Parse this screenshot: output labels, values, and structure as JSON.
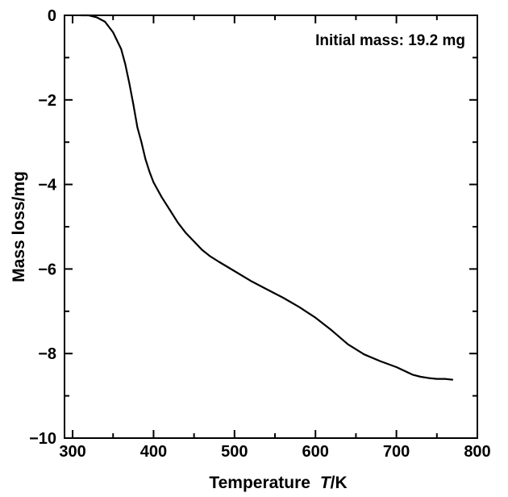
{
  "chart_data": {
    "type": "line",
    "title": "",
    "xlabel": "Temperature",
    "xlabel_symbol": "T",
    "xlabel_unit": "/K",
    "ylabel": "Mass loss/mg",
    "annotation": "Initial mass: 19.2 mg",
    "xlim": [
      290,
      800
    ],
    "ylim": [
      -10,
      0
    ],
    "x_tick_labels": [
      "300",
      "400",
      "500",
      "600",
      "700",
      "800"
    ],
    "y_tick_labels": [
      "0",
      "−2",
      "−4",
      "−6",
      "−8",
      "−10"
    ],
    "series": [
      {
        "name": "Mass loss",
        "color": "#000000",
        "x": [
          310,
          320,
          330,
          340,
          350,
          360,
          365,
          370,
          375,
          380,
          385,
          390,
          395,
          400,
          410,
          420,
          430,
          440,
          450,
          460,
          470,
          480,
          500,
          520,
          540,
          560,
          580,
          600,
          620,
          640,
          660,
          680,
          700,
          720,
          730,
          740,
          750,
          760,
          770
        ],
        "y": [
          0,
          0,
          -0.05,
          -0.15,
          -0.4,
          -0.8,
          -1.15,
          -1.6,
          -2.1,
          -2.65,
          -3.0,
          -3.4,
          -3.7,
          -3.95,
          -4.3,
          -4.6,
          -4.9,
          -5.15,
          -5.35,
          -5.55,
          -5.7,
          -5.82,
          -6.05,
          -6.28,
          -6.48,
          -6.68,
          -6.9,
          -7.15,
          -7.45,
          -7.78,
          -8.02,
          -8.18,
          -8.32,
          -8.5,
          -8.55,
          -8.58,
          -8.6,
          -8.6,
          -8.62
        ]
      }
    ]
  }
}
